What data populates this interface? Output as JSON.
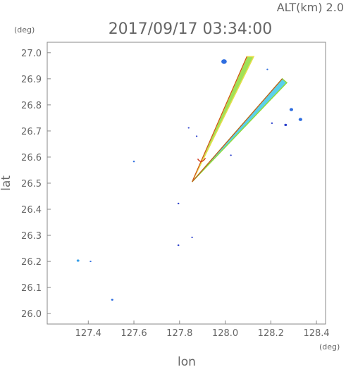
{
  "header": {
    "altitude": "ALT(km)  2.0",
    "timestamp": "2017/09/17  03:34:00"
  },
  "chart_data": {
    "type": "scatter",
    "title": "2017/09/17  03:34:00",
    "subtitle": "ALT(km)  2.0",
    "xlabel": "lon",
    "ylabel": "lat",
    "xunit": "(deg)",
    "yunit": "(deg)",
    "xlim": [
      127.22,
      128.44
    ],
    "ylim": [
      25.96,
      27.04
    ],
    "xticks": [
      "127.4",
      "127.6",
      "127.8",
      "128.0",
      "128.2",
      "128.4"
    ],
    "yticks": [
      "26.0",
      "26.1",
      "26.2",
      "26.3",
      "26.4",
      "26.5",
      "26.6",
      "26.7",
      "26.8",
      "26.9",
      "27.0"
    ],
    "grid": false,
    "colors": {
      "echo_light": "#3aa0e8",
      "echo_mid": "#2f6ee0",
      "echo_dark": "#2a3fcc",
      "beam_green": "#8fdc3a",
      "beam_yellow": "#e6e04a",
      "beam_cyan": "#3ec8e8",
      "beam_red": "#d23a20"
    },
    "echoes": [
      {
        "lon": 127.995,
        "lat": 26.966,
        "size": 0.012,
        "color": "echo_mid"
      },
      {
        "lon": 127.6,
        "lat": 26.583,
        "size": 0.004,
        "color": "echo_mid"
      },
      {
        "lon": 127.84,
        "lat": 26.712,
        "size": 0.002,
        "color": "echo_dark"
      },
      {
        "lon": 127.795,
        "lat": 26.422,
        "size": 0.004,
        "color": "echo_dark"
      },
      {
        "lon": 127.795,
        "lat": 26.262,
        "size": 0.004,
        "color": "echo_dark"
      },
      {
        "lon": 127.855,
        "lat": 26.292,
        "size": 0.002,
        "color": "echo_dark"
      },
      {
        "lon": 127.355,
        "lat": 26.203,
        "size": 0.006,
        "color": "echo_light"
      },
      {
        "lon": 127.41,
        "lat": 26.2,
        "size": 0.003,
        "color": "echo_mid"
      },
      {
        "lon": 127.505,
        "lat": 26.053,
        "size": 0.005,
        "color": "echo_mid"
      },
      {
        "lon": 128.29,
        "lat": 26.782,
        "size": 0.008,
        "color": "echo_mid"
      },
      {
        "lon": 128.33,
        "lat": 26.744,
        "size": 0.008,
        "color": "echo_mid"
      },
      {
        "lon": 128.265,
        "lat": 26.723,
        "size": 0.006,
        "color": "echo_dark"
      },
      {
        "lon": 128.205,
        "lat": 26.73,
        "size": 0.004,
        "color": "echo_dark"
      },
      {
        "lon": 128.185,
        "lat": 26.936,
        "size": 0.002,
        "color": "echo_mid"
      },
      {
        "lon": 127.875,
        "lat": 26.68,
        "size": 0.002,
        "color": "echo_dark"
      },
      {
        "lon": 128.025,
        "lat": 26.607,
        "size": 0.002,
        "color": "echo_dark"
      }
    ],
    "beams": [
      {
        "name": "north",
        "apex": [
          127.855,
          26.505
        ],
        "edges": [
          [
            128.095,
            26.985
          ],
          [
            128.125,
            26.985
          ]
        ],
        "fill": "beam_green",
        "edge": "beam_yellow"
      },
      {
        "name": "northeast",
        "apex": [
          127.855,
          26.505
        ],
        "edges": [
          [
            128.25,
            26.9
          ],
          [
            128.27,
            26.885
          ]
        ],
        "fill": "beam_cyan",
        "edge": "beam_green"
      }
    ],
    "origin_mark": {
      "lon": 127.895,
      "lat": 26.585,
      "color": "beam_red"
    }
  }
}
